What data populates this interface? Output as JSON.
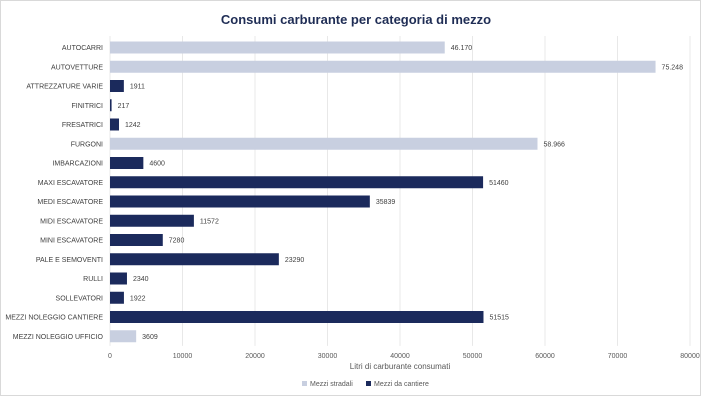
{
  "chart_data": {
    "type": "bar",
    "orientation": "horizontal",
    "title": "Consumi carburante per categoria di mezzo",
    "xlabel": "Litri di carburante consumati",
    "ylabel": "",
    "xlim": [
      0,
      80000
    ],
    "xticks": [
      "0",
      "10000",
      "20000",
      "30000",
      "40000",
      "50000",
      "60000",
      "70000",
      "80000"
    ],
    "grid": true,
    "legend_position": "bottom",
    "colors": {
      "Mezzi stradali": "#c8cfe0",
      "Mezzi da cantiere": "#1b2a5c"
    },
    "legend": [
      {
        "name": "Mezzi stradali",
        "color": "#c8cfe0"
      },
      {
        "name": "Mezzi da cantiere",
        "color": "#1b2a5c"
      }
    ],
    "bars": [
      {
        "category": "AUTOCARRI",
        "value": 46170,
        "label": "46.170",
        "series": "Mezzi stradali"
      },
      {
        "category": "AUTOVETTURE",
        "value": 75248,
        "label": "75.248",
        "series": "Mezzi stradali"
      },
      {
        "category": "ATTREZZATURE VARIE",
        "value": 1911,
        "label": "1911",
        "series": "Mezzi da cantiere"
      },
      {
        "category": "FINITRICI",
        "value": 217,
        "label": "217",
        "series": "Mezzi da cantiere"
      },
      {
        "category": "FRESATRICI",
        "value": 1242,
        "label": "1242",
        "series": "Mezzi da cantiere"
      },
      {
        "category": "FURGONI",
        "value": 58966,
        "label": "58.966",
        "series": "Mezzi stradali"
      },
      {
        "category": "IMBARCAZIONI",
        "value": 4600,
        "label": "4600",
        "series": "Mezzi da cantiere"
      },
      {
        "category": "MAXI ESCAVATORE",
        "value": 51460,
        "label": "51460",
        "series": "Mezzi da cantiere"
      },
      {
        "category": "MEDI ESCAVATORE",
        "value": 35839,
        "label": "35839",
        "series": "Mezzi da cantiere"
      },
      {
        "category": "MIDI ESCAVATORE",
        "value": 11572,
        "label": "11572",
        "series": "Mezzi da cantiere"
      },
      {
        "category": "MINI ESCAVATORE",
        "value": 7280,
        "label": "7280",
        "series": "Mezzi da cantiere"
      },
      {
        "category": "PALE E SEMOVENTI",
        "value": 23290,
        "label": "23290",
        "series": "Mezzi da cantiere"
      },
      {
        "category": "RULLI",
        "value": 2340,
        "label": "2340",
        "series": "Mezzi da cantiere"
      },
      {
        "category": "SOLLEVATORI",
        "value": 1922,
        "label": "1922",
        "series": "Mezzi da cantiere"
      },
      {
        "category": "MEZZI NOLEGGIO CANTIERE",
        "value": 51515,
        "label": "51515",
        "series": "Mezzi da cantiere"
      },
      {
        "category": "MEZZI NOLEGGIO UFFICIO",
        "value": 3609,
        "label": "3609",
        "series": "Mezzi stradali"
      }
    ]
  }
}
